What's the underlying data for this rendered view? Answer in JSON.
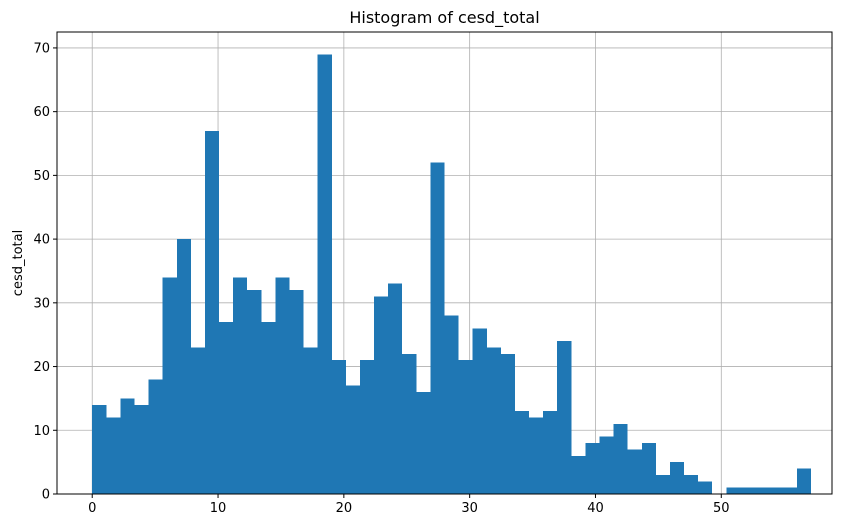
{
  "chart_data": {
    "type": "bar",
    "subtype": "histogram",
    "title": "Histogram of cesd_total",
    "xlabel": "",
    "ylabel": "cesd_total",
    "xlim": [
      -2.8,
      58.8
    ],
    "ylim": [
      0,
      72.5
    ],
    "x_ticks": [
      0,
      10,
      20,
      30,
      40,
      50
    ],
    "y_ticks": [
      0,
      10,
      20,
      30,
      40,
      50,
      60,
      70
    ],
    "bin_start": 0,
    "bin_width": 1.12,
    "counts": [
      14,
      12,
      15,
      14,
      18,
      34,
      40,
      23,
      57,
      27,
      34,
      32,
      27,
      34,
      32,
      23,
      69,
      21,
      17,
      21,
      31,
      33,
      22,
      16,
      52,
      28,
      21,
      26,
      23,
      22,
      13,
      12,
      13,
      24,
      6,
      8,
      9,
      11,
      7,
      8,
      3,
      5,
      3,
      2,
      0,
      1,
      1,
      1,
      1,
      1,
      4
    ],
    "bar_color": "#1f77b4",
    "grid": true
  }
}
